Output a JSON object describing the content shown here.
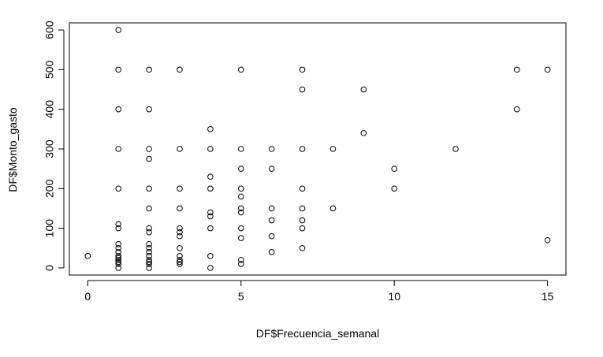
{
  "chart_data": {
    "type": "scatter",
    "title": "",
    "xlabel": "DF$Frecuencia_semanal",
    "ylabel": "DF$Monto_gasto",
    "xlim": [
      -0.6,
      15.6
    ],
    "ylim": [
      -18,
      618
    ],
    "x_ticks": [
      0,
      5,
      10,
      15
    ],
    "y_ticks": [
      0,
      100,
      200,
      300,
      400,
      500,
      600
    ],
    "grid": false,
    "legend": "none",
    "marker": "open-circle",
    "colors": {
      "points": "#000000",
      "axes": "#000000",
      "background": "#ffffff"
    },
    "points": [
      [
        0,
        30
      ],
      [
        1,
        600
      ],
      [
        1,
        500
      ],
      [
        1,
        400
      ],
      [
        1,
        300
      ],
      [
        1,
        200
      ],
      [
        1,
        110
      ],
      [
        1,
        100
      ],
      [
        1,
        60
      ],
      [
        1,
        50
      ],
      [
        1,
        40
      ],
      [
        1,
        30
      ],
      [
        1,
        25
      ],
      [
        1,
        20
      ],
      [
        1,
        15
      ],
      [
        1,
        10
      ],
      [
        1,
        0
      ],
      [
        2,
        500
      ],
      [
        2,
        400
      ],
      [
        2,
        300
      ],
      [
        2,
        275
      ],
      [
        2,
        200
      ],
      [
        2,
        150
      ],
      [
        2,
        100
      ],
      [
        2,
        90
      ],
      [
        2,
        60
      ],
      [
        2,
        50
      ],
      [
        2,
        40
      ],
      [
        2,
        30
      ],
      [
        2,
        20
      ],
      [
        2,
        15
      ],
      [
        2,
        10
      ],
      [
        2,
        0
      ],
      [
        3,
        500
      ],
      [
        3,
        300
      ],
      [
        3,
        200
      ],
      [
        3,
        150
      ],
      [
        3,
        100
      ],
      [
        3,
        90
      ],
      [
        3,
        80
      ],
      [
        3,
        50
      ],
      [
        3,
        30
      ],
      [
        3,
        20
      ],
      [
        3,
        15
      ],
      [
        3,
        10
      ],
      [
        4,
        350
      ],
      [
        4,
        300
      ],
      [
        4,
        230
      ],
      [
        4,
        200
      ],
      [
        4,
        140
      ],
      [
        4,
        130
      ],
      [
        4,
        100
      ],
      [
        4,
        30
      ],
      [
        4,
        0
      ],
      [
        5,
        500
      ],
      [
        5,
        300
      ],
      [
        5,
        250
      ],
      [
        5,
        200
      ],
      [
        5,
        180
      ],
      [
        5,
        150
      ],
      [
        5,
        140
      ],
      [
        5,
        100
      ],
      [
        5,
        75
      ],
      [
        5,
        20
      ],
      [
        5,
        10
      ],
      [
        6,
        300
      ],
      [
        6,
        250
      ],
      [
        6,
        150
      ],
      [
        6,
        120
      ],
      [
        6,
        80
      ],
      [
        6,
        40
      ],
      [
        7,
        500
      ],
      [
        7,
        450
      ],
      [
        7,
        300
      ],
      [
        7,
        200
      ],
      [
        7,
        150
      ],
      [
        7,
        120
      ],
      [
        7,
        100
      ],
      [
        7,
        50
      ],
      [
        8,
        300
      ],
      [
        8,
        150
      ],
      [
        9,
        450
      ],
      [
        9,
        340
      ],
      [
        10,
        250
      ],
      [
        10,
        200
      ],
      [
        12,
        300
      ],
      [
        14,
        500
      ],
      [
        14,
        400
      ],
      [
        15,
        500
      ],
      [
        15,
        70
      ]
    ]
  }
}
